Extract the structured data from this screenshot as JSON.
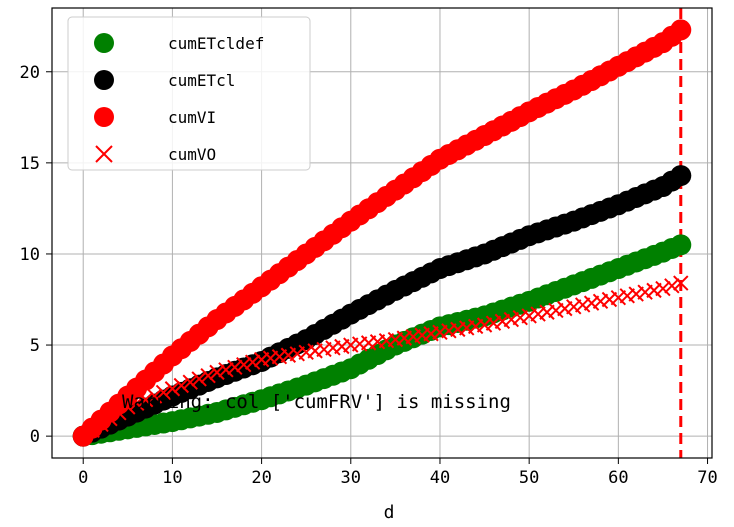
{
  "chart_data": {
    "type": "scatter",
    "title": "",
    "xlabel": "d",
    "ylabel": "",
    "xlim": [
      -3.5,
      70.5
    ],
    "ylim": [
      -1.2,
      23.5
    ],
    "xticks": [
      0,
      10,
      20,
      30,
      40,
      50,
      60,
      70
    ],
    "yticks": [
      0,
      5,
      10,
      15,
      20
    ],
    "grid": true,
    "legend_position": "top-left",
    "vline": {
      "x": 67,
      "color": "#ff0000",
      "style": "dashed"
    },
    "annotation": "Warning: col ['cumFRV'] is missing",
    "series_count": 68,
    "series": [
      {
        "name": "cumETcldef",
        "color": "#008000",
        "marker": "circle",
        "anchors": [
          [
            0,
            0
          ],
          [
            5,
            0.4
          ],
          [
            10,
            0.8
          ],
          [
            15,
            1.3
          ],
          [
            20,
            2.0
          ],
          [
            25,
            2.8
          ],
          [
            30,
            3.7
          ],
          [
            35,
            5.0
          ],
          [
            40,
            6.0
          ],
          [
            45,
            6.6
          ],
          [
            50,
            7.4
          ],
          [
            55,
            8.3
          ],
          [
            60,
            9.2
          ],
          [
            65,
            10.1
          ],
          [
            67,
            10.5
          ]
        ]
      },
      {
        "name": "cumETcl",
        "color": "#000000",
        "marker": "circle",
        "anchors": [
          [
            0,
            0
          ],
          [
            5,
            1.1
          ],
          [
            10,
            2.2
          ],
          [
            15,
            3.2
          ],
          [
            20,
            4.1
          ],
          [
            25,
            5.3
          ],
          [
            30,
            6.7
          ],
          [
            35,
            8.0
          ],
          [
            40,
            9.2
          ],
          [
            45,
            10.0
          ],
          [
            50,
            11.0
          ],
          [
            55,
            11.8
          ],
          [
            60,
            12.7
          ],
          [
            65,
            13.7
          ],
          [
            67,
            14.3
          ]
        ]
      },
      {
        "name": "cumVI",
        "color": "#ff0000",
        "marker": "circle",
        "anchors": [
          [
            0,
            0
          ],
          [
            5,
            2.2
          ],
          [
            10,
            4.4
          ],
          [
            15,
            6.4
          ],
          [
            20,
            8.2
          ],
          [
            25,
            10.0
          ],
          [
            30,
            11.8
          ],
          [
            35,
            13.5
          ],
          [
            40,
            15.2
          ],
          [
            45,
            16.5
          ],
          [
            50,
            17.8
          ],
          [
            55,
            19.0
          ],
          [
            60,
            20.3
          ],
          [
            65,
            21.6
          ],
          [
            67,
            22.3
          ]
        ]
      },
      {
        "name": "cumVO",
        "color": "#ff0000",
        "marker": "x",
        "anchors": [
          [
            0,
            0
          ],
          [
            5,
            1.6
          ],
          [
            10,
            2.6
          ],
          [
            15,
            3.5
          ],
          [
            20,
            4.2
          ],
          [
            25,
            4.6
          ],
          [
            30,
            5.0
          ],
          [
            35,
            5.3
          ],
          [
            40,
            5.7
          ],
          [
            45,
            6.1
          ],
          [
            50,
            6.6
          ],
          [
            55,
            7.1
          ],
          [
            60,
            7.6
          ],
          [
            65,
            8.1
          ],
          [
            67,
            8.4
          ]
        ]
      }
    ]
  }
}
